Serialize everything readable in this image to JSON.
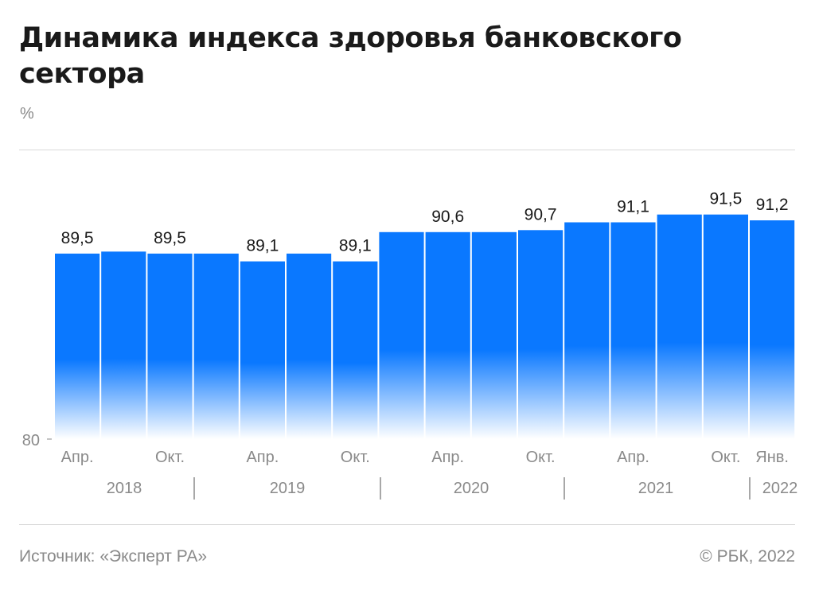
{
  "header": {
    "title": "Динамика индекса здоровья банковского сектора",
    "unit": "%"
  },
  "footer": {
    "source": "Источник: «Эксперт РА»",
    "copyright": "© РБК, 2022"
  },
  "colors": {
    "bar": "#0a78ff",
    "bar_fade": "#ffffff",
    "text": "#1a1a1a",
    "muted": "#8a8a8a"
  },
  "chart_data": {
    "type": "bar",
    "title": "Динамика индекса здоровья банковского сектора",
    "ylabel": "%",
    "ylim": [
      80,
      92
    ],
    "y_ticks": [
      "80"
    ],
    "grid": false,
    "x_tick_labels": [
      "Апр.",
      "",
      "Окт.",
      "",
      "Апр.",
      "",
      "Окт.",
      "",
      "Апр.",
      "",
      "Окт.",
      "",
      "Апр.",
      "",
      "Окт.",
      "Янв."
    ],
    "years": [
      "2018",
      "2019",
      "2020",
      "2021",
      "2022"
    ],
    "values": [
      89.5,
      89.6,
      89.5,
      89.5,
      89.1,
      89.5,
      89.1,
      90.6,
      90.6,
      90.6,
      90.7,
      91.1,
      91.1,
      91.5,
      91.5,
      91.2
    ],
    "data_labels": [
      "89,5",
      "",
      "89,5",
      "",
      "89,1",
      "",
      "89,1",
      "",
      "90,6",
      "",
      "90,7",
      "",
      "91,1",
      "",
      "91,5",
      "91,2"
    ]
  }
}
